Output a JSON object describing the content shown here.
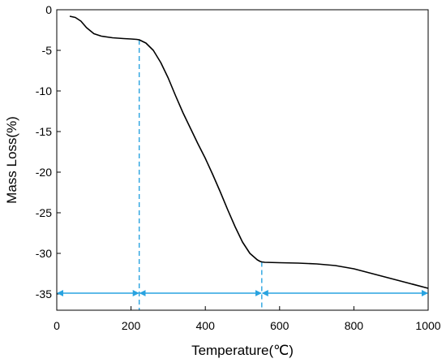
{
  "chart_data": {
    "type": "line",
    "title": "",
    "xlabel": "Temperature(℃)",
    "ylabel": "Mass Loss(%)",
    "xlim": [
      0,
      1000
    ],
    "ylim": [
      -37,
      0
    ],
    "xticks": [
      0,
      200,
      400,
      600,
      800,
      1000
    ],
    "yticks": [
      0,
      -5,
      -10,
      -15,
      -20,
      -25,
      -30,
      -35
    ],
    "grid": false,
    "legend": "none",
    "colors": {
      "curve": "#000000",
      "markers": "#29a3e0"
    },
    "series": [
      {
        "x": [
          35,
          50,
          65,
          80,
          100,
          120,
          150,
          180,
          200,
          215,
          222,
          240,
          260,
          280,
          300,
          320,
          340,
          360,
          380,
          400,
          420,
          440,
          460,
          480,
          500,
          520,
          540,
          548,
          552,
          560,
          600,
          650,
          700,
          750,
          800,
          850,
          900,
          950,
          1000
        ],
        "y": [
          -0.8,
          -0.95,
          -1.4,
          -2.2,
          -2.95,
          -3.25,
          -3.45,
          -3.55,
          -3.6,
          -3.65,
          -3.7,
          -4.1,
          -5.0,
          -6.5,
          -8.4,
          -10.6,
          -12.7,
          -14.6,
          -16.5,
          -18.3,
          -20.3,
          -22.4,
          -24.6,
          -26.7,
          -28.6,
          -30.0,
          -30.8,
          -31.0,
          -31.05,
          -31.1,
          -31.15,
          -31.2,
          -31.3,
          -31.5,
          -31.9,
          -32.5,
          -33.1,
          -33.7,
          -34.3
        ]
      }
    ],
    "annotations": {
      "vlines": [
        {
          "x": 222,
          "y_top": -3.7
        },
        {
          "x": 552,
          "y_top": -31.05
        }
      ],
      "arrow_y": -34.9,
      "arrows": [
        {
          "from": 0,
          "to": 222
        },
        {
          "from": 222,
          "to": 552
        },
        {
          "from": 552,
          "to": 1000
        }
      ]
    }
  }
}
